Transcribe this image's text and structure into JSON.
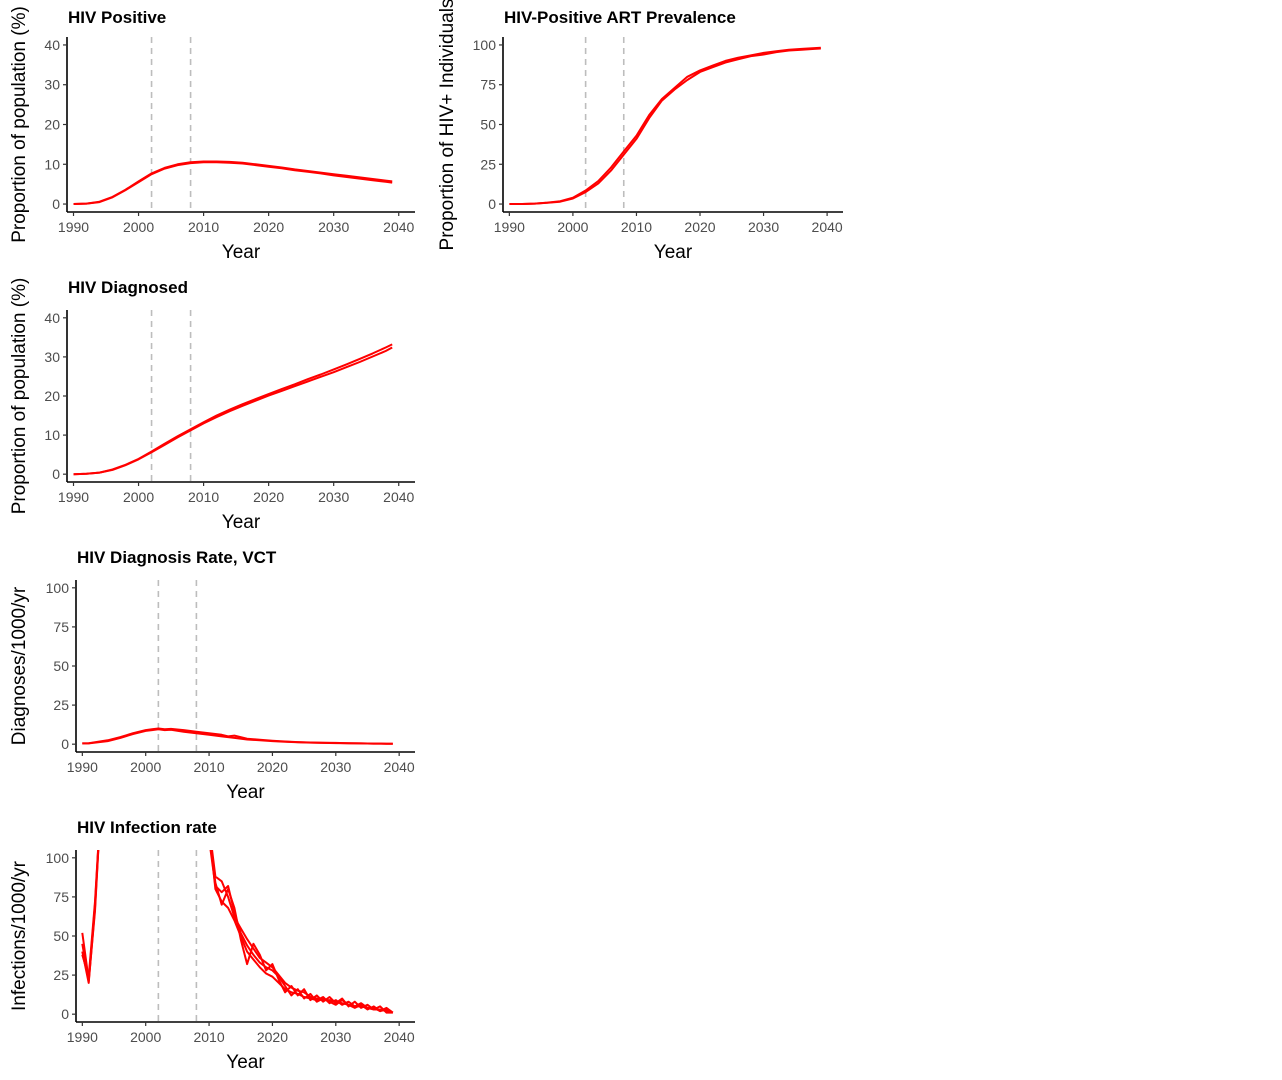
{
  "chart_data": [
    {
      "type": "line",
      "title": "HIV Positive",
      "xlabel": "Year",
      "ylabel": "Proportion of population (%)",
      "xlim": [
        1989,
        2042.5
      ],
      "ylim": [
        -2,
        42
      ],
      "xticks": [
        1990,
        2000,
        2010,
        2020,
        2030,
        2040
      ],
      "yticks": [
        0,
        10,
        20,
        30,
        40
      ],
      "vlines": [
        2002,
        2008
      ],
      "grid": false,
      "color": "#ff0000",
      "series": [
        {
          "x": [
            1990,
            1992,
            1994,
            1996,
            1998,
            2000,
            2002,
            2004,
            2006,
            2008,
            2010,
            2012,
            2014,
            2016,
            2018,
            2020,
            2022,
            2024,
            2026,
            2028,
            2030,
            2032,
            2034,
            2036,
            2038,
            2039
          ],
          "y": [
            0,
            0.1,
            0.5,
            1.7,
            3.5,
            5.5,
            7.5,
            8.9,
            9.8,
            10.3,
            10.5,
            10.5,
            10.4,
            10.2,
            9.8,
            9.4,
            9.0,
            8.5,
            8.1,
            7.7,
            7.2,
            6.8,
            6.4,
            6.0,
            5.6,
            5.4
          ]
        },
        {
          "x": [
            1990,
            1992,
            1994,
            1996,
            1998,
            2000,
            2002,
            2004,
            2006,
            2008,
            2010,
            2012,
            2014,
            2016,
            2018,
            2020,
            2022,
            2024,
            2026,
            2028,
            2030,
            2032,
            2034,
            2036,
            2038,
            2039
          ],
          "y": [
            0,
            0.1,
            0.6,
            1.8,
            3.6,
            5.7,
            7.7,
            9.1,
            10.0,
            10.5,
            10.7,
            10.7,
            10.6,
            10.4,
            10.0,
            9.6,
            9.2,
            8.7,
            8.3,
            7.9,
            7.5,
            7.1,
            6.7,
            6.3,
            5.9,
            5.7
          ]
        }
      ]
    },
    {
      "type": "line",
      "title": "HIV-Positive ART Prevalence",
      "xlabel": "Year",
      "ylabel": "Proportion of HIV+ Individuals",
      "xlim": [
        1989,
        2042.5
      ],
      "ylim": [
        -5,
        105
      ],
      "xticks": [
        1990,
        2000,
        2010,
        2020,
        2030,
        2040
      ],
      "yticks": [
        0,
        25,
        50,
        75,
        100
      ],
      "vlines": [
        2002,
        2008
      ],
      "grid": false,
      "color": "#ff0000",
      "series": [
        {
          "x": [
            1990,
            1992,
            1994,
            1996,
            1998,
            2000,
            2002,
            2004,
            2006,
            2008,
            2010,
            2012,
            2014,
            2016,
            2018,
            2020,
            2022,
            2024,
            2026,
            2028,
            2030,
            2032,
            2034,
            2036,
            2038,
            2039
          ],
          "y": [
            0,
            0,
            0.3,
            0.8,
            1.5,
            3.5,
            7.5,
            13,
            21,
            31,
            41,
            54,
            65,
            72,
            78,
            83,
            86,
            89,
            91,
            93,
            94,
            95.5,
            96.5,
            97,
            97.5,
            97.8
          ]
        },
        {
          "x": [
            1990,
            1992,
            1994,
            1996,
            1998,
            2000,
            2002,
            2004,
            2006,
            2008,
            2010,
            2012,
            2014,
            2016,
            2018,
            2020,
            2022,
            2024,
            2026,
            2028,
            2030,
            2032,
            2034,
            2036,
            2038,
            2039
          ],
          "y": [
            0,
            0,
            0.3,
            0.9,
            1.8,
            4,
            8.5,
            14.5,
            23,
            33,
            43,
            56,
            66,
            73,
            80,
            84,
            87,
            90,
            92,
            93.5,
            95,
            96,
            97,
            97.5,
            98,
            98.2
          ]
        }
      ]
    },
    {
      "type": "line",
      "title": "HIV Diagnosed",
      "xlabel": "Year",
      "ylabel": "Proportion of population (%)",
      "xlim": [
        1989,
        2042.5
      ],
      "ylim": [
        -2,
        42
      ],
      "xticks": [
        1990,
        2000,
        2010,
        2020,
        2030,
        2040
      ],
      "yticks": [
        0,
        10,
        20,
        30,
        40
      ],
      "vlines": [
        2002,
        2008
      ],
      "grid": false,
      "color": "#ff0000",
      "series": [
        {
          "x": [
            1990,
            1992,
            1994,
            1996,
            1998,
            2000,
            2002,
            2004,
            2006,
            2008,
            2010,
            2012,
            2014,
            2016,
            2018,
            2020,
            2022,
            2024,
            2026,
            2028,
            2030,
            2032,
            2034,
            2036,
            2038,
            2039
          ],
          "y": [
            0,
            0.1,
            0.4,
            1.1,
            2.3,
            3.8,
            5.6,
            7.5,
            9.4,
            11.2,
            13,
            14.6,
            16.1,
            17.5,
            18.8,
            20.1,
            21.3,
            22.5,
            23.7,
            24.9,
            26.1,
            27.4,
            28.7,
            30.1,
            31.5,
            32.4
          ]
        },
        {
          "x": [
            1990,
            1992,
            1994,
            1996,
            1998,
            2000,
            2002,
            2004,
            2006,
            2008,
            2010,
            2012,
            2014,
            2016,
            2018,
            2020,
            2022,
            2024,
            2026,
            2028,
            2030,
            2032,
            2034,
            2036,
            2038,
            2039
          ],
          "y": [
            0,
            0.1,
            0.4,
            1.2,
            2.4,
            3.9,
            5.8,
            7.8,
            9.7,
            11.5,
            13.3,
            15,
            16.5,
            17.9,
            19.2,
            20.5,
            21.8,
            23,
            24.3,
            25.5,
            26.8,
            28.1,
            29.5,
            30.9,
            32.4,
            33.2
          ]
        }
      ]
    },
    {
      "type": "line",
      "title": "HIV Diagnosis Rate, VCT",
      "xlabel": "Year",
      "ylabel": "Diagnoses/1000/yr",
      "xlim": [
        1989,
        2042.5
      ],
      "ylim": [
        -5,
        105
      ],
      "xticks": [
        1990,
        2000,
        2010,
        2020,
        2030,
        2040
      ],
      "yticks": [
        0,
        25,
        50,
        75,
        100
      ],
      "vlines": [
        2002,
        2008
      ],
      "grid": false,
      "color": "#ff0000",
      "series": [
        {
          "x": [
            1990,
            1991,
            1992,
            1994,
            1996,
            1998,
            2000,
            2001,
            2002,
            2003,
            2004,
            2006,
            2008,
            2010,
            2012,
            2014,
            2016,
            2018,
            2020,
            2022,
            2024,
            2026,
            2028,
            2030,
            2032,
            2034,
            2036,
            2038,
            2039
          ],
          "y": [
            0.5,
            0.5,
            1,
            2,
            4,
            6.5,
            8.5,
            9,
            9.5,
            9,
            9.2,
            8,
            7,
            6,
            5,
            4,
            3,
            2.5,
            2,
            1.5,
            1.2,
            1,
            0.8,
            0.7,
            0.6,
            0.5,
            0.4,
            0.3,
            0.3
          ]
        },
        {
          "x": [
            1990,
            1991,
            1992,
            1994,
            1996,
            1998,
            2000,
            2001,
            2002,
            2003,
            2004,
            2006,
            2008,
            2010,
            2012,
            2013,
            2014,
            2016,
            2018,
            2020,
            2022,
            2024,
            2026,
            2028,
            2030,
            2032,
            2034,
            2036,
            2038,
            2039
          ],
          "y": [
            0.5,
            0.6,
            1.2,
            2.5,
            4.5,
            7,
            9,
            9.5,
            10,
            9.5,
            9.8,
            9,
            8,
            7,
            6,
            5,
            5.5,
            3.5,
            2.8,
            2.2,
            1.7,
            1.3,
            1.1,
            0.9,
            0.8,
            0.6,
            0.5,
            0.4,
            0.3,
            0.3
          ]
        }
      ]
    },
    {
      "type": "line",
      "title": "HIV Infection rate",
      "xlabel": "Year",
      "ylabel": "Infections/1000/yr",
      "xlim": [
        1989,
        2042.5
      ],
      "ylim": [
        -5,
        105
      ],
      "xticks": [
        1990,
        2000,
        2010,
        2020,
        2030,
        2040
      ],
      "yticks": [
        0,
        25,
        50,
        75,
        100
      ],
      "vlines": [
        2002,
        2008
      ],
      "grid": false,
      "clip": true,
      "color": "#ff0000",
      "series": [
        {
          "x": [
            1990,
            1991,
            1992,
            1993,
            2010,
            2011,
            2012,
            2013,
            2014,
            2015,
            2016,
            2017,
            2018,
            2019,
            2020,
            2021,
            2022,
            2023,
            2024,
            2025,
            2026,
            2027,
            2028,
            2029,
            2030,
            2031,
            2032,
            2033,
            2034,
            2035,
            2036,
            2037,
            2038,
            2039
          ],
          "y": [
            52,
            22,
            70,
            140,
            120,
            88,
            85,
            75,
            62,
            55,
            48,
            42,
            36,
            33,
            30,
            25,
            20,
            17,
            15,
            14,
            11,
            10,
            9,
            9,
            8,
            7,
            6,
            5,
            5,
            4,
            3,
            3,
            2,
            1
          ]
        },
        {
          "x": [
            1990,
            1991,
            1992,
            1993,
            2010,
            2011,
            2012,
            2013,
            2014,
            2015,
            2016,
            2017,
            2018,
            2019,
            2020,
            2021,
            2022,
            2023,
            2024,
            2025,
            2026,
            2027,
            2028,
            2029,
            2030,
            2031,
            2032,
            2033,
            2034,
            2035,
            2036,
            2037,
            2038,
            2039
          ],
          "y": [
            40,
            20,
            68,
            140,
            115,
            84,
            70,
            80,
            68,
            48,
            32,
            45,
            38,
            28,
            32,
            22,
            14,
            18,
            12,
            16,
            9,
            12,
            8,
            11,
            7,
            10,
            5,
            8,
            4,
            6,
            3,
            5,
            1,
            1
          ]
        },
        {
          "x": [
            1990,
            1991,
            1992,
            1993,
            2010,
            2011,
            2012,
            2013,
            2014,
            2015,
            2016,
            2017,
            2018,
            2019,
            2020,
            2021,
            2022,
            2023,
            2024,
            2025,
            2026,
            2027,
            2028,
            2029,
            2030,
            2031,
            2032,
            2033,
            2034,
            2035,
            2036,
            2037,
            2038,
            2039
          ],
          "y": [
            38,
            24,
            72,
            140,
            118,
            80,
            72,
            68,
            60,
            50,
            40,
            35,
            30,
            26,
            24,
            20,
            16,
            14,
            13,
            11,
            10,
            9,
            11,
            7,
            9,
            6,
            8,
            5,
            7,
            4,
            4,
            2,
            3,
            1
          ]
        },
        {
          "x": [
            1990,
            1991,
            1992,
            1993,
            2010,
            2011,
            2012,
            2013,
            2014,
            2015,
            2016,
            2017,
            2018,
            2019,
            2020,
            2021,
            2022,
            2023,
            2024,
            2025,
            2026,
            2027,
            2028,
            2029,
            2030,
            2031,
            2032,
            2033,
            2034,
            2035,
            2036,
            2037,
            2038,
            2039
          ],
          "y": [
            45,
            21,
            66,
            140,
            112,
            82,
            78,
            82,
            65,
            52,
            44,
            38,
            33,
            30,
            28,
            24,
            18,
            12,
            16,
            10,
            13,
            8,
            10,
            8,
            6,
            9,
            6,
            4,
            6,
            3,
            5,
            2,
            4,
            1
          ]
        }
      ]
    }
  ]
}
